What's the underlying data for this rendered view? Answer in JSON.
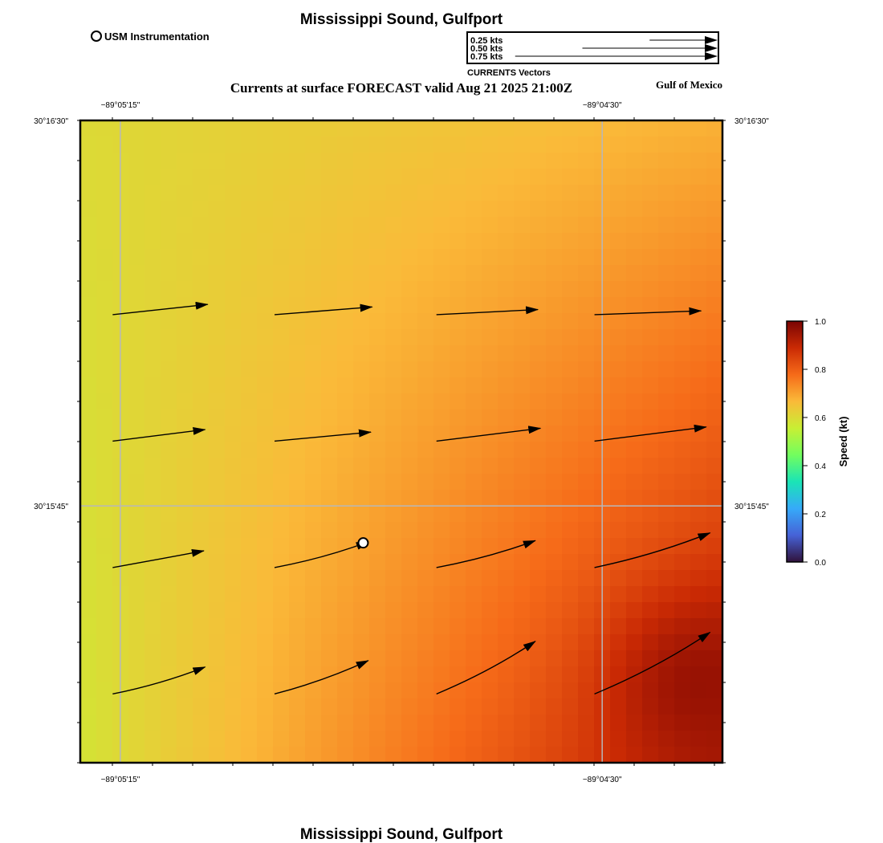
{
  "title_top": "Mississippi Sound, Gulfport",
  "title_bottom": "Mississippi Sound, Gulfport",
  "subtitle": "Currents at surface FORECAST valid Aug 21 2025 21:00Z",
  "region_label": "Gulf of Mexico",
  "station_legend": {
    "label": "USM Instrumentation"
  },
  "vector_legend": {
    "title": "CURRENTS Vectors",
    "entries": [
      {
        "label": "0.25 kts",
        "speed": 0.25
      },
      {
        "label": "0.50 kts",
        "speed": 0.5
      },
      {
        "label": "0.75 kts",
        "speed": 0.75
      }
    ]
  },
  "axes": {
    "x_ticks": [
      {
        "label": "−89°05'15\"",
        "lon": -89.0875
      },
      {
        "label": "−89°04'30\"",
        "lon": -89.075
      }
    ],
    "y_ticks": [
      {
        "label": "30°16'30\"",
        "lat": 30.275
      },
      {
        "label": "30°15'45\"",
        "lat": 30.2625
      }
    ],
    "lon_range": [
      -89.08854,
      -89.07188
    ],
    "lat_range": [
      30.25417,
      30.275
    ]
  },
  "colorbar": {
    "label": "Speed (kt)",
    "ticks": [
      "0.0",
      "0.2",
      "0.4",
      "0.6",
      "0.8",
      "1.0"
    ],
    "range": [
      0.0,
      1.0
    ],
    "colors": [
      "#30123b",
      "#4662d7",
      "#36aaf9",
      "#1ae4b6",
      "#72fe5e",
      "#c8ef34",
      "#faba39",
      "#f66b19",
      "#ca2a04",
      "#7a0403"
    ]
  },
  "speed_samples": {
    "lon": [
      -89.08854,
      -89.07188
    ],
    "lat": [
      30.275,
      30.25417
    ],
    "top_left": 0.6,
    "top_right": 0.68,
    "bottom_left": 0.58,
    "bottom_right": 0.93,
    "hotspot": {
      "lon": -89.0724,
      "lat": 30.2567,
      "speed": 0.96
    }
  },
  "station": {
    "name": "USM Instrumentation",
    "lon": -89.0812,
    "lat": 30.2613
  },
  "vectors": [
    {
      "lon": -89.0877,
      "lat": 30.2687,
      "u": 0.74,
      "v": 0.08
    },
    {
      "lon": -89.0835,
      "lat": 30.2687,
      "u": 0.76,
      "v": 0.06
    },
    {
      "lon": -89.0793,
      "lat": 30.2687,
      "u": 0.79,
      "v": 0.04
    },
    {
      "lon": -89.0752,
      "lat": 30.2687,
      "u": 0.83,
      "v": 0.03
    },
    {
      "lon": -89.0877,
      "lat": 30.2646,
      "u": 0.72,
      "v": 0.09
    },
    {
      "lon": -89.0835,
      "lat": 30.2646,
      "u": 0.75,
      "v": 0.07
    },
    {
      "lon": -89.0793,
      "lat": 30.2646,
      "u": 0.81,
      "v": 0.1
    },
    {
      "lon": -89.0752,
      "lat": 30.2646,
      "u": 0.87,
      "v": 0.11
    },
    {
      "lon": -89.0877,
      "lat": 30.2605,
      "u": 0.71,
      "v": 0.13
    },
    {
      "lon": -89.0835,
      "lat": 30.2605,
      "u": 0.73,
      "v": 0.2
    },
    {
      "lon": -89.0793,
      "lat": 30.2605,
      "u": 0.77,
      "v": 0.21
    },
    {
      "lon": -89.0752,
      "lat": 30.2605,
      "u": 0.9,
      "v": 0.27
    },
    {
      "lon": -89.0877,
      "lat": 30.2564,
      "u": 0.72,
      "v": 0.21
    },
    {
      "lon": -89.0835,
      "lat": 30.2564,
      "u": 0.73,
      "v": 0.26
    },
    {
      "lon": -89.0793,
      "lat": 30.2564,
      "u": 0.77,
      "v": 0.41
    },
    {
      "lon": -89.0752,
      "lat": 30.2564,
      "u": 0.9,
      "v": 0.48
    }
  ]
}
